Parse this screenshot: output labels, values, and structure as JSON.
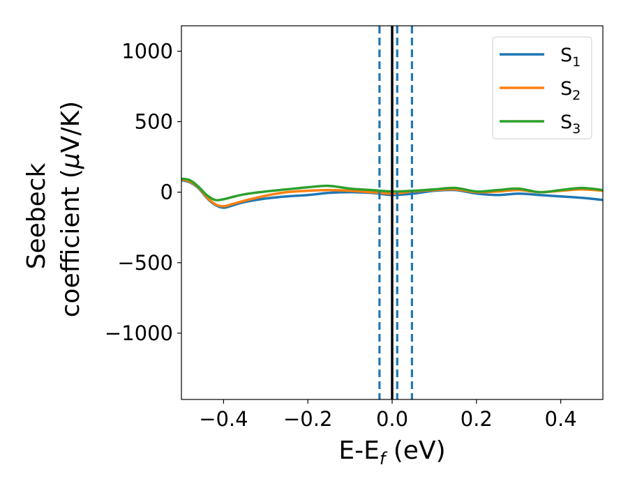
{
  "chart_data": {
    "type": "line",
    "xlabel": "E-E",
    "xlabel_sub": "f",
    "xlabel_unit": " (eV)",
    "ylabel_line1": "Seebeck",
    "ylabel_line2": "coefficient  (",
    "ylabel_mu": "μ",
    "ylabel_unit_tail": "V/K)",
    "xlim": [
      -0.5,
      0.5
    ],
    "ylim": [
      -1470,
      1180
    ],
    "xticks": [
      -0.4,
      -0.2,
      0.0,
      0.2,
      0.4
    ],
    "xtick_labels": [
      "−0.4",
      "−0.2",
      "0.0",
      "0.2",
      "0.4"
    ],
    "yticks": [
      1000,
      500,
      0,
      -500,
      -1000
    ],
    "ytick_labels": [
      "1000",
      "500",
      "0",
      "−500",
      "−1000"
    ],
    "grid": false,
    "legend_placement": "top-right",
    "vlines": [
      {
        "x": 0.0,
        "style": "solid",
        "color": "#000000"
      },
      {
        "x": -0.03,
        "style": "dashed",
        "color": "#1f77b4"
      },
      {
        "x": 0.012,
        "style": "dashed",
        "color": "#1f77b4"
      },
      {
        "x": 0.047,
        "style": "dashed",
        "color": "#1f77b4"
      }
    ],
    "series": [
      {
        "name": "S",
        "sub": "1",
        "color": "#1f77b4",
        "x": [
          -0.5,
          -0.48,
          -0.46,
          -0.44,
          -0.42,
          -0.4,
          -0.38,
          -0.35,
          -0.3,
          -0.25,
          -0.2,
          -0.15,
          -0.1,
          -0.05,
          0.0,
          0.05,
          0.1,
          0.15,
          0.2,
          0.25,
          0.3,
          0.35,
          0.4,
          0.45,
          0.5
        ],
        "values": [
          85,
          70,
          30,
          -40,
          -90,
          -110,
          -95,
          -70,
          -45,
          -30,
          -20,
          -5,
          0,
          -5,
          -20,
          -10,
          10,
          15,
          -10,
          -20,
          -10,
          -20,
          -30,
          -40,
          -55
        ]
      },
      {
        "name": "S",
        "sub": "2",
        "color": "#ff7f0e",
        "x": [
          -0.5,
          -0.48,
          -0.46,
          -0.44,
          -0.42,
          -0.4,
          -0.38,
          -0.35,
          -0.3,
          -0.25,
          -0.2,
          -0.15,
          -0.1,
          -0.05,
          0.0,
          0.05,
          0.1,
          0.15,
          0.2,
          0.25,
          0.3,
          0.35,
          0.4,
          0.45,
          0.5
        ],
        "values": [
          90,
          75,
          35,
          -35,
          -85,
          -100,
          -85,
          -60,
          -25,
          0,
          10,
          15,
          10,
          0,
          -10,
          5,
          15,
          20,
          0,
          5,
          15,
          0,
          10,
          20,
          10
        ]
      },
      {
        "name": "S",
        "sub": "3",
        "color": "#2ca02c",
        "x": [
          -0.5,
          -0.48,
          -0.46,
          -0.44,
          -0.42,
          -0.4,
          -0.38,
          -0.35,
          -0.3,
          -0.25,
          -0.2,
          -0.15,
          -0.1,
          -0.05,
          0.0,
          0.05,
          0.1,
          0.15,
          0.2,
          0.25,
          0.3,
          0.35,
          0.4,
          0.45,
          0.5
        ],
        "values": [
          95,
          85,
          40,
          -20,
          -55,
          -50,
          -35,
          -15,
          5,
          20,
          35,
          45,
          25,
          15,
          5,
          10,
          20,
          30,
          5,
          15,
          25,
          0,
          15,
          30,
          15
        ]
      }
    ]
  }
}
